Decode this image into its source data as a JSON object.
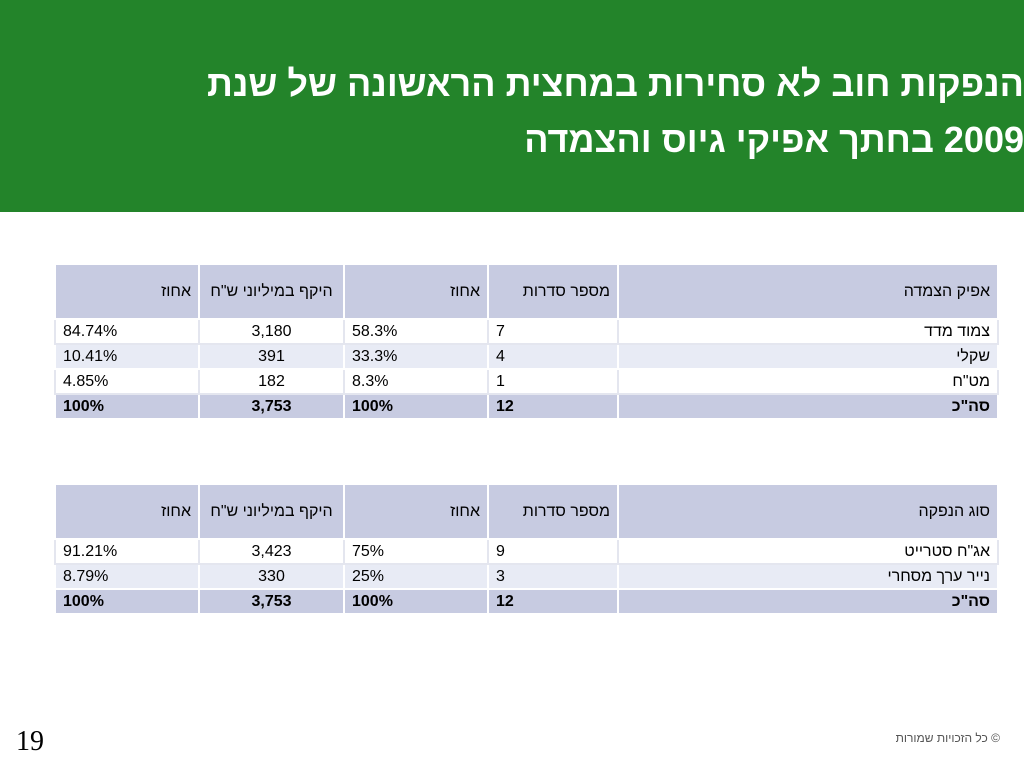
{
  "slide": {
    "title_line1": "הנפקות חוב לא סחירות במחצית הראשונה של שנת",
    "title_line2": "2009 בחתך אפיקי גיוס והצמדה",
    "page_number": "19",
    "copyright": "© כל הזכויות שמורות"
  },
  "tables": [
    {
      "headers": [
        "אפיק הצמדה",
        "מספר סדרות",
        "אחוז",
        "היקף במיליוני ש\"ח",
        "אחוז"
      ],
      "rows": [
        [
          "צמוד מדד",
          "7",
          "58.3%",
          "3,180",
          "84.74%"
        ],
        [
          "שקלי",
          "4",
          "33.3%",
          "391",
          "10.41%"
        ],
        [
          "מט\"ח",
          "1",
          "8.3%",
          "182",
          "4.85%"
        ]
      ],
      "total": [
        "סה\"כ",
        "12",
        "100%",
        "3,753",
        "100%"
      ]
    },
    {
      "headers": [
        "סוג הנפקה",
        "מספר סדרות",
        "אחוז",
        "היקף במיליוני ש\"ח",
        "אחוז"
      ],
      "rows": [
        [
          "אג\"ח סטרייט",
          "9",
          "75%",
          "3,423",
          "91.21%"
        ],
        [
          "נייר ערך מסחרי",
          "3",
          "25%",
          "330",
          "8.79%"
        ]
      ],
      "total": [
        "סה\"כ",
        "12",
        "100%",
        "3,753",
        "100%"
      ]
    }
  ]
}
